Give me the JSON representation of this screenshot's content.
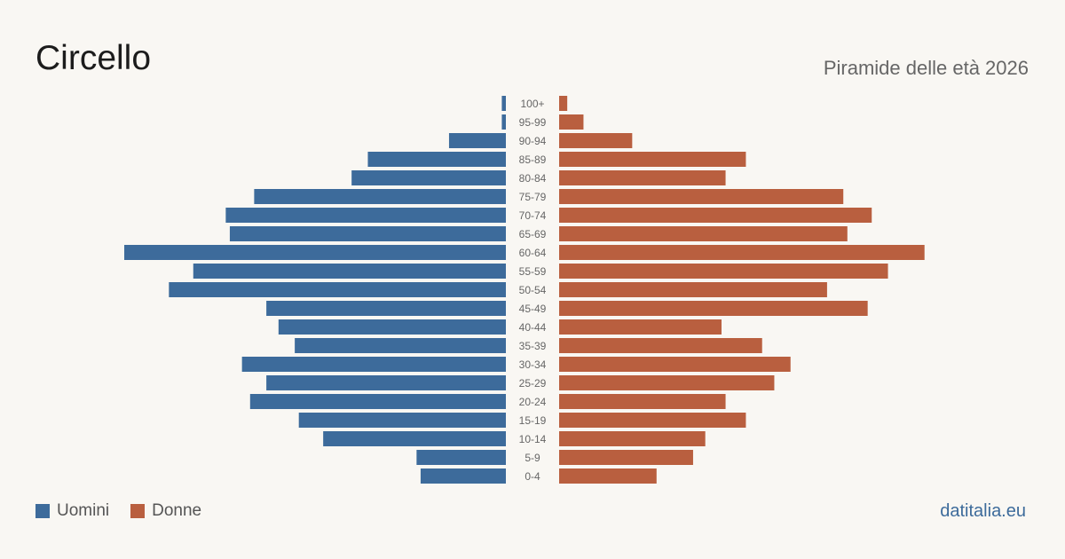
{
  "header": {
    "title": "Circello",
    "subtitle": "Piramide delle età 2026"
  },
  "legend": {
    "men_label": "Uomini",
    "women_label": "Donne"
  },
  "footer": {
    "source": "datitalia.eu"
  },
  "colors": {
    "men": "#3d6b9b",
    "women": "#b95f3f",
    "source": "#3d6b9b"
  },
  "chart_data": {
    "type": "bar",
    "orientation": "horizontal-pyramid",
    "categories": [
      "100+",
      "95-99",
      "90-94",
      "85-89",
      "80-84",
      "75-79",
      "70-74",
      "65-69",
      "60-64",
      "55-59",
      "50-54",
      "45-49",
      "40-44",
      "35-39",
      "30-34",
      "25-29",
      "20-24",
      "15-19",
      "10-14",
      "5-9",
      "0-4"
    ],
    "series": [
      {
        "name": "Uomini",
        "values": [
          1,
          1,
          14,
          34,
          38,
          62,
          69,
          68,
          94,
          77,
          83,
          59,
          56,
          52,
          65,
          59,
          63,
          51,
          45,
          22,
          21
        ]
      },
      {
        "name": "Donne",
        "values": [
          2,
          6,
          18,
          46,
          41,
          70,
          77,
          71,
          90,
          81,
          66,
          76,
          40,
          50,
          57,
          53,
          41,
          46,
          36,
          33,
          24
        ]
      }
    ],
    "xlim": [
      0,
      94
    ],
    "grid": false,
    "legend_position": "bottom-left"
  }
}
